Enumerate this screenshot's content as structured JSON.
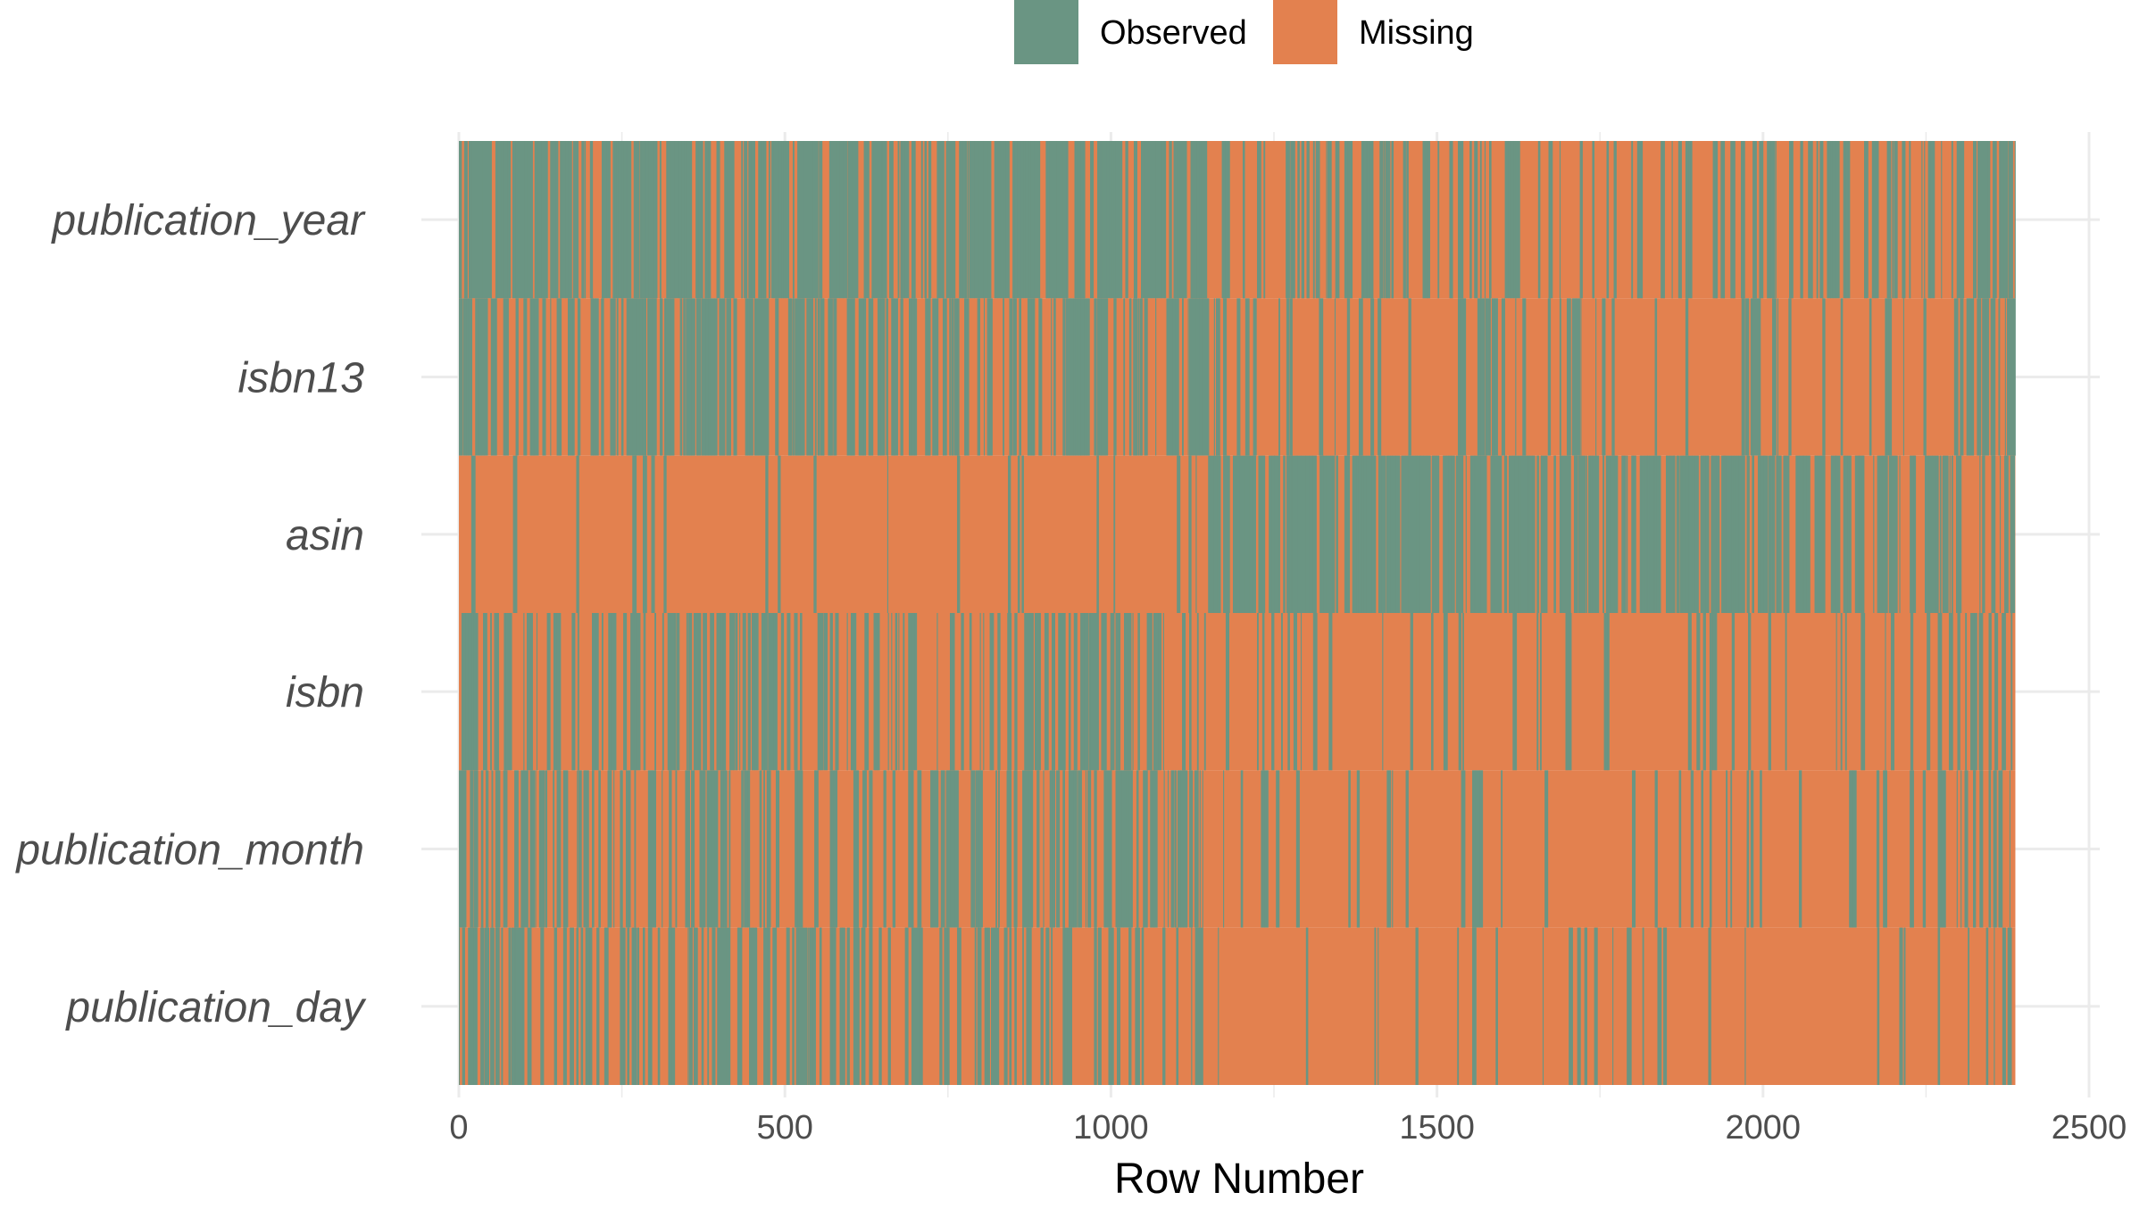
{
  "chart_data": {
    "type": "heatmap",
    "title": "",
    "xlabel": "Row Number",
    "ylabel": "",
    "xlim": [
      0,
      2500
    ],
    "x_ticks": [
      "0",
      "500",
      "1000",
      "1500",
      "2000",
      "2500"
    ],
    "x_tick_values": [
      0,
      500,
      1000,
      1500,
      2000,
      2500
    ],
    "n_rows": 2387,
    "grid": true,
    "legend_position": "top",
    "legend": [
      {
        "name": "Observed",
        "color": "#6a9583"
      },
      {
        "name": "Missing",
        "color": "#e3814f"
      }
    ],
    "variables": [
      {
        "name": "publication_year",
        "observed_fraction_by_segment": [
          0.85,
          0.78,
          0.72,
          0.7,
          0.75,
          0.72,
          0.65,
          0.62,
          0.75,
          0.8,
          0.76,
          0.82,
          0.25,
          0.35,
          0.4,
          0.32,
          0.32,
          0.3,
          0.35,
          0.28,
          0.4,
          0.35,
          0.3,
          0.32,
          0.55
        ]
      },
      {
        "name": "isbn13",
        "observed_fraction_by_segment": [
          0.6,
          0.55,
          0.55,
          0.6,
          0.7,
          0.55,
          0.55,
          0.5,
          0.55,
          0.65,
          0.6,
          0.6,
          0.15,
          0.25,
          0.2,
          0.15,
          0.2,
          0.2,
          0.2,
          0.15,
          0.2,
          0.15,
          0.2,
          0.2,
          0.45
        ]
      },
      {
        "name": "asin",
        "observed_fraction_by_segment": [
          0.05,
          0.05,
          0.06,
          0.05,
          0.05,
          0.06,
          0.05,
          0.06,
          0.05,
          0.05,
          0.06,
          0.08,
          0.8,
          0.85,
          0.8,
          0.82,
          0.75,
          0.72,
          0.75,
          0.7,
          0.8,
          0.7,
          0.72,
          0.65,
          0.4
        ]
      },
      {
        "name": "isbn",
        "observed_fraction_by_segment": [
          0.45,
          0.4,
          0.4,
          0.45,
          0.55,
          0.45,
          0.45,
          0.4,
          0.45,
          0.55,
          0.5,
          0.55,
          0.12,
          0.18,
          0.15,
          0.1,
          0.12,
          0.12,
          0.15,
          0.1,
          0.12,
          0.1,
          0.15,
          0.15,
          0.4
        ]
      },
      {
        "name": "publication_month",
        "observed_fraction_by_segment": [
          0.5,
          0.45,
          0.45,
          0.45,
          0.5,
          0.42,
          0.42,
          0.38,
          0.45,
          0.5,
          0.45,
          0.48,
          0.1,
          0.12,
          0.1,
          0.08,
          0.1,
          0.1,
          0.1,
          0.08,
          0.1,
          0.08,
          0.1,
          0.12,
          0.25
        ]
      },
      {
        "name": "publication_day",
        "observed_fraction_by_segment": [
          0.45,
          0.4,
          0.4,
          0.42,
          0.45,
          0.4,
          0.4,
          0.35,
          0.4,
          0.45,
          0.42,
          0.45,
          0.08,
          0.1,
          0.08,
          0.06,
          0.08,
          0.08,
          0.08,
          0.06,
          0.08,
          0.06,
          0.08,
          0.1,
          0.22
        ]
      }
    ]
  }
}
